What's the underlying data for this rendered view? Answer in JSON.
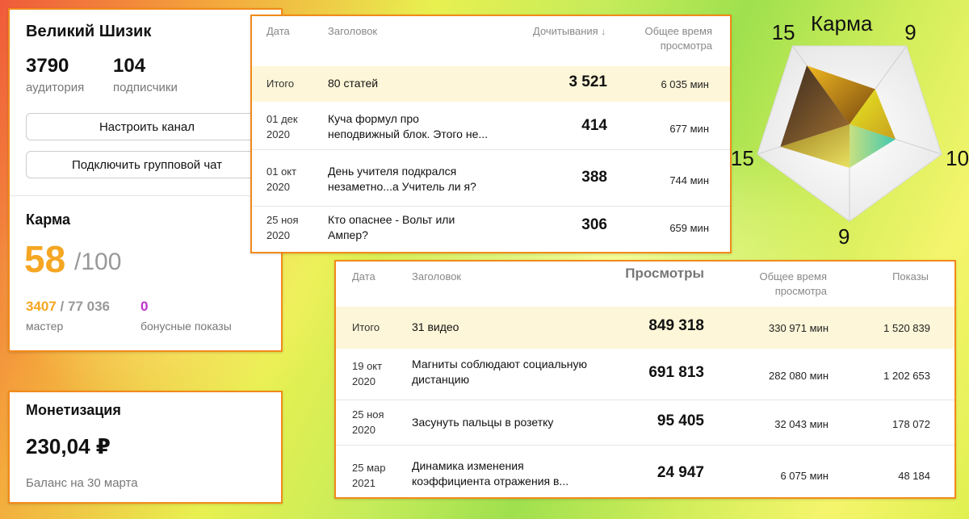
{
  "channel": {
    "name": "Великий Шизик",
    "audience_value": "3790",
    "audience_label": "аудитория",
    "subscribers_value": "104",
    "subscribers_label": "подписчики",
    "setup_button": "Настроить канал",
    "chat_button": "Подключить групповой чат"
  },
  "karma": {
    "title": "Карма",
    "value": "58",
    "max": "/100",
    "master_value": "3407",
    "master_total": " / 77 036",
    "master_label": "мастер",
    "bonus_value": "0",
    "bonus_label": "бонусные показы"
  },
  "monetization": {
    "title": "Монетизация",
    "amount": "230,04 ₽",
    "balance_label": "Баланс на 30 марта"
  },
  "articles": {
    "headers": {
      "date": "Дата",
      "title": "Заголовок",
      "reads": "Дочитывания",
      "sort_icon": "↓",
      "time_line1": "Общее время",
      "time_line2": "просмотра"
    },
    "total": {
      "date": "Итого",
      "title": "80 статей",
      "reads": "3 521",
      "time": "6 035 мин"
    },
    "rows": [
      {
        "date_line1": "01 дек",
        "date_line2": "2020",
        "title_line1": "Куча формул про",
        "title_line2": "неподвижный блок. Этого не...",
        "reads": "414",
        "time": "677 мин"
      },
      {
        "date_line1": "01 окт",
        "date_line2": "2020",
        "title_line1": "День учителя подкрался",
        "title_line2": "незаметно...а Учитель ли я?",
        "reads": "388",
        "time": "744 мин"
      },
      {
        "date_line1": "25 ноя",
        "date_line2": "2020",
        "title_line1": "Кто опаснее - Вольт или",
        "title_line2": "Ампер?",
        "reads": "306",
        "time": "659 мин"
      }
    ]
  },
  "videos": {
    "headers": {
      "date": "Дата",
      "title": "Заголовок",
      "views": "Просмотры",
      "time_line1": "Общее время",
      "time_line2": "просмотра",
      "impressions": "Показы"
    },
    "total": {
      "date": "Итого",
      "title": "31 видео",
      "views": "849 318",
      "time": "330 971 мин",
      "impressions": "1 520 839"
    },
    "rows": [
      {
        "date_line1": "19 окт",
        "date_line2": "2020",
        "title_line1": "Магниты соблюдают социальную",
        "title_line2": "дистанцию",
        "views": "691 813",
        "time": "282 080 мин",
        "impressions": "1 202 653"
      },
      {
        "date_line1": "25 ноя",
        "date_line2": "2020",
        "title_line1": "Засунуть пальцы в розетку",
        "title_line2": "",
        "views": "95 405",
        "time": "32 043 мин",
        "impressions": "178 072"
      },
      {
        "date_line1": "25 мар",
        "date_line2": "2021",
        "title_line1": "Динамика изменения",
        "title_line2": "коэффициента отражения в...",
        "views": "24 947",
        "time": "6 075 мин",
        "impressions": "48 184"
      }
    ]
  },
  "radar": {
    "title": "Карма",
    "labels": [
      "15",
      "9",
      "10",
      "9",
      "15"
    ],
    "values": [
      15,
      9,
      10,
      9,
      15
    ],
    "max": 20
  }
}
